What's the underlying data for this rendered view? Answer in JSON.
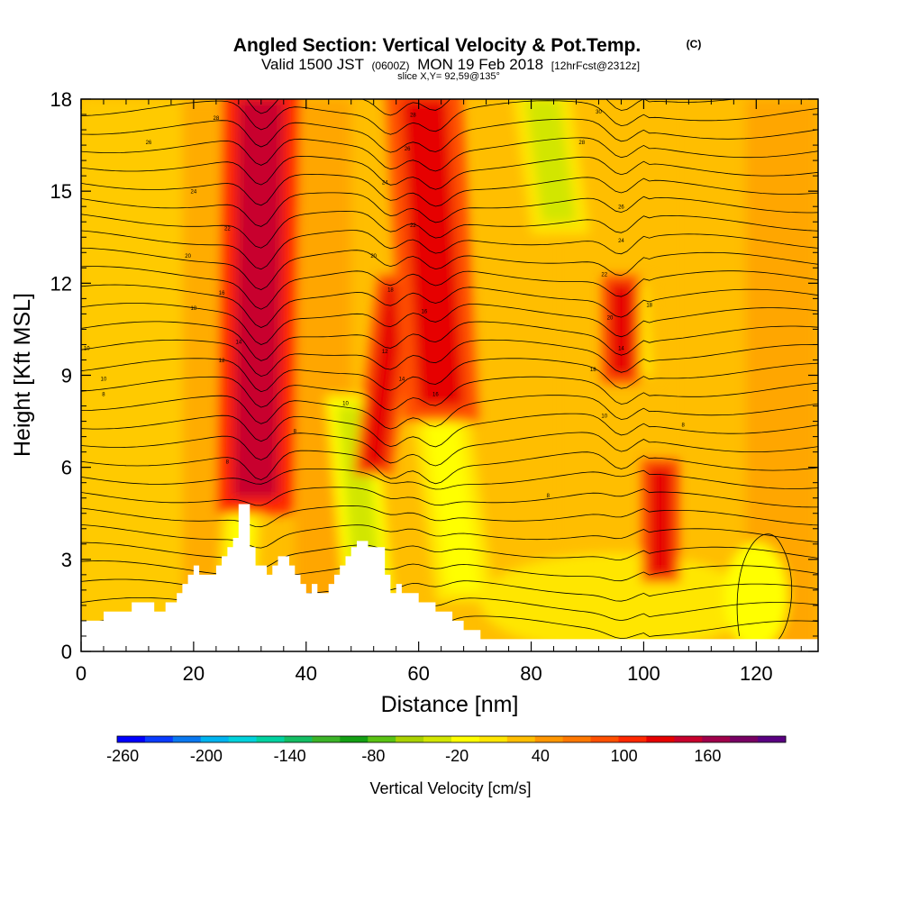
{
  "chart_data": {
    "type": "heatmap",
    "title": "Angled Section: Vertical Velocity & Pot.Temp.",
    "title_mark": "(C)",
    "subtitle_parts": [
      "Valid 1500 JST",
      "(0600Z)",
      "MON 19 Feb 2018",
      "[12hrFcst@2312z]"
    ],
    "slice_text": "slice X,Y= 92,59@135°",
    "xlabel": "Distance [nm]",
    "ylabel": "Height [Kft MSL]",
    "xlim": [
      0,
      131
    ],
    "ylim": [
      0,
      18
    ],
    "x_ticks": [
      0,
      20,
      40,
      60,
      80,
      100,
      120
    ],
    "x_tick_labels": [
      "0",
      "20",
      "40",
      "60",
      "80",
      "100",
      "120"
    ],
    "y_ticks": [
      0,
      3,
      6,
      9,
      12,
      15,
      18
    ],
    "y_tick_labels": [
      "0",
      "3",
      "6",
      "9",
      "12",
      "15",
      "18"
    ],
    "colorbar": {
      "label": "Vertical Velocity [cm/s]",
      "tick_labels": [
        "-260",
        "-200",
        "-140",
        "-80",
        "-20",
        "40",
        "100",
        "160"
      ],
      "colors": [
        "#0000ff",
        "#0a3cff",
        "#0a78f0",
        "#00b4f0",
        "#00d2dc",
        "#00d2a0",
        "#14be64",
        "#3cb428",
        "#14a014",
        "#5ac314",
        "#aad200",
        "#d2e600",
        "#ffff00",
        "#ffe600",
        "#ffbe00",
        "#ff9600",
        "#ff7800",
        "#ff5000",
        "#ff2800",
        "#e60000",
        "#c8002d",
        "#a0004b",
        "#780064",
        "#5a0082"
      ]
    },
    "terrain": {
      "x": [
        0,
        4,
        4,
        9,
        9,
        13,
        13,
        15,
        15,
        17,
        17,
        18,
        18,
        19,
        19,
        20,
        20,
        21,
        21,
        24,
        24,
        25,
        25,
        26,
        26,
        27,
        27,
        28,
        28,
        30,
        30,
        31,
        31,
        33,
        33,
        34,
        34,
        35,
        35,
        37,
        37,
        38,
        38,
        39,
        39,
        40,
        40,
        41,
        41,
        42,
        42,
        44,
        44,
        45,
        45,
        46,
        46,
        47,
        47,
        48,
        48,
        49,
        49,
        51,
        51,
        54,
        54,
        55,
        55,
        56,
        56,
        57,
        57,
        60,
        60,
        63,
        63,
        66,
        66,
        68,
        68,
        71,
        71,
        131
      ],
      "h": [
        1.0,
        1.0,
        1.3,
        1.3,
        1.6,
        1.6,
        1.3,
        1.3,
        1.6,
        1.6,
        1.9,
        1.9,
        2.2,
        2.2,
        2.5,
        2.5,
        2.8,
        2.8,
        2.5,
        2.5,
        2.8,
        2.8,
        3.1,
        3.1,
        3.4,
        3.4,
        3.7,
        3.7,
        4.8,
        4.8,
        3.4,
        3.4,
        2.8,
        2.8,
        2.5,
        2.5,
        2.8,
        2.8,
        3.1,
        3.1,
        2.8,
        2.8,
        2.5,
        2.5,
        2.2,
        2.2,
        1.9,
        1.9,
        2.2,
        2.2,
        1.9,
        1.9,
        2.2,
        2.2,
        2.5,
        2.5,
        2.8,
        2.8,
        3.1,
        3.1,
        3.4,
        3.4,
        3.6,
        3.6,
        3.4,
        3.4,
        2.5,
        2.5,
        1.9,
        1.9,
        2.2,
        2.2,
        1.9,
        1.9,
        1.6,
        1.6,
        1.3,
        1.3,
        1.0,
        1.0,
        0.7,
        0.7,
        0.4,
        0.4
      ]
    },
    "updraft_cores": [
      {
        "x_base": 31,
        "x_top": 32,
        "y_bottom": 5,
        "y_top": 18,
        "w": 4,
        "value": 100
      },
      {
        "x_base": 52,
        "x_top": 56,
        "y_bottom": 6,
        "y_top": 12,
        "w": 2,
        "value": 90
      },
      {
        "x_base": 64,
        "x_top": 61,
        "y_bottom": 8,
        "y_top": 18,
        "w": 4,
        "value": 80
      },
      {
        "x_base": 96,
        "x_top": 96,
        "y_bottom": 9,
        "y_top": 12,
        "w": 2,
        "value": 90
      },
      {
        "x_base": 103,
        "x_top": 103,
        "y_bottom": 2.5,
        "y_top": 6,
        "w": 2,
        "value": 90
      }
    ],
    "downdraft_bands": [
      {
        "x_base": 28,
        "x_top": 29,
        "y_bottom": 2.5,
        "y_top": 6,
        "w": 2,
        "value": -60
      },
      {
        "x_base": 51,
        "x_top": 48,
        "y_bottom": 2,
        "y_top": 8,
        "w": 2.5,
        "value": -80
      },
      {
        "x_base": 68,
        "x_top": 63,
        "y_bottom": 2,
        "y_top": 9,
        "w": 3,
        "value": -60
      },
      {
        "x_base": 85,
        "x_top": 82,
        "y_bottom": 14,
        "y_top": 18,
        "w": 3,
        "value": -70
      },
      {
        "x_base": 100,
        "x_top": 99,
        "y_bottom": 9,
        "y_top": 12,
        "w": 1.5,
        "value": -40
      }
    ],
    "theta_contour_labels": [
      {
        "text": "8",
        "x": 26,
        "y": 6.2
      },
      {
        "text": "8",
        "x": 4,
        "y": 8.4
      },
      {
        "text": "8",
        "x": 38,
        "y": 7.2
      },
      {
        "text": "8",
        "x": 83,
        "y": 5.1
      },
      {
        "text": "8",
        "x": 107,
        "y": 7.4
      },
      {
        "text": "10",
        "x": 1,
        "y": 9.9
      },
      {
        "text": "10",
        "x": 4,
        "y": 8.9
      },
      {
        "text": "10",
        "x": 47,
        "y": 8.1
      },
      {
        "text": "10",
        "x": 93,
        "y": 7.7
      },
      {
        "text": "12",
        "x": 25,
        "y": 9.5
      },
      {
        "text": "12",
        "x": 54,
        "y": 9.8
      },
      {
        "text": "14",
        "x": 28,
        "y": 10.1
      },
      {
        "text": "14",
        "x": 57,
        "y": 8.9
      },
      {
        "text": "14",
        "x": 96,
        "y": 9.9
      },
      {
        "text": "16",
        "x": 63,
        "y": 8.4
      },
      {
        "text": "16",
        "x": 61,
        "y": 11.1
      },
      {
        "text": "16",
        "x": 25,
        "y": 11.7
      },
      {
        "text": "18",
        "x": 20,
        "y": 11.2
      },
      {
        "text": "18",
        "x": 55,
        "y": 11.8
      },
      {
        "text": "18",
        "x": 91,
        "y": 9.2
      },
      {
        "text": "18",
        "x": 101,
        "y": 11.3
      },
      {
        "text": "20",
        "x": 19,
        "y": 12.9
      },
      {
        "text": "20",
        "x": 52,
        "y": 12.9
      },
      {
        "text": "20",
        "x": 94,
        "y": 10.9
      },
      {
        "text": "22",
        "x": 26,
        "y": 13.8
      },
      {
        "text": "22",
        "x": 59,
        "y": 13.9
      },
      {
        "text": "22",
        "x": 93,
        "y": 12.3
      },
      {
        "text": "24",
        "x": 20,
        "y": 15.0
      },
      {
        "text": "24",
        "x": 54,
        "y": 15.3
      },
      {
        "text": "24",
        "x": 96,
        "y": 13.4
      },
      {
        "text": "26",
        "x": 12,
        "y": 16.6
      },
      {
        "text": "26",
        "x": 58,
        "y": 16.4
      },
      {
        "text": "26",
        "x": 96,
        "y": 14.5
      },
      {
        "text": "28",
        "x": 24,
        "y": 17.4
      },
      {
        "text": "28",
        "x": 59,
        "y": 17.5
      },
      {
        "text": "28",
        "x": 89,
        "y": 16.6
      },
      {
        "text": "30",
        "x": 92,
        "y": 17.6
      }
    ]
  }
}
